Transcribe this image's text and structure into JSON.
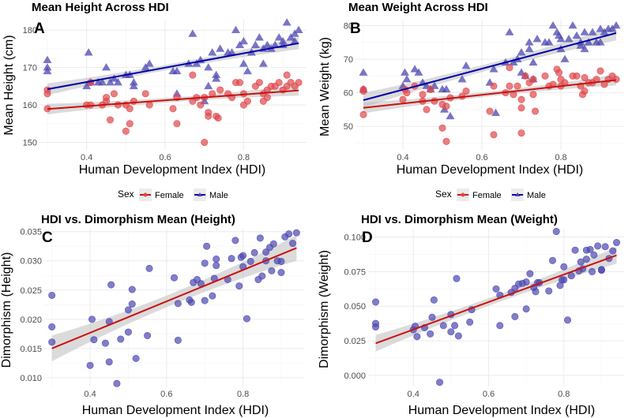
{
  "chart_data": [
    {
      "type": "scatter",
      "panel": "A",
      "title": "Mean Height Across HDI",
      "xlabel": "Human Development Index (HDI)",
      "ylabel": "Mean Height (cm)",
      "xlim": [
        0.28,
        0.96
      ],
      "ylim": [
        148,
        183
      ],
      "xticks": [
        0.4,
        0.6,
        0.8
      ],
      "xtick_labels": [
        "0.4",
        "0.6",
        "0.8"
      ],
      "yticks": [
        150,
        160,
        170,
        180
      ],
      "ytick_labels": [
        "150",
        "160",
        "170",
        "180"
      ],
      "grid": true,
      "legend": {
        "title": "Sex",
        "position": "bottom",
        "entries": [
          "Female",
          "Male"
        ]
      },
      "series": [
        {
          "name": "Male",
          "marker": "triangle",
          "color": "#4b47b0",
          "line_color": "#0000aa",
          "fit": {
            "x": [
              0.3,
              0.94
            ],
            "y": [
              164.2,
              176.5
            ],
            "ci": 1.6
          },
          "x": [
            0.3,
            0.3,
            0.3,
            0.4,
            0.405,
            0.41,
            0.43,
            0.44,
            0.45,
            0.46,
            0.47,
            0.48,
            0.5,
            0.51,
            0.52,
            0.52,
            0.55,
            0.56,
            0.62,
            0.63,
            0.63,
            0.66,
            0.67,
            0.68,
            0.69,
            0.7,
            0.71,
            0.71,
            0.72,
            0.73,
            0.73,
            0.74,
            0.76,
            0.77,
            0.78,
            0.79,
            0.8,
            0.8,
            0.81,
            0.82,
            0.83,
            0.84,
            0.85,
            0.85,
            0.86,
            0.87,
            0.88,
            0.89,
            0.9,
            0.9,
            0.91,
            0.92,
            0.93,
            0.93,
            0.94
          ],
          "y": [
            172,
            170,
            169,
            165,
            174,
            166,
            166,
            166,
            170,
            166,
            167,
            166,
            168,
            168,
            165,
            166,
            170,
            171,
            169,
            169,
            163,
            171,
            179,
            171,
            172,
            161,
            170,
            165,
            174,
            167,
            168,
            175,
            174,
            174,
            180,
            176,
            177,
            171,
            169,
            174,
            176,
            178,
            171,
            175,
            176,
            175,
            176,
            178,
            177,
            176,
            182,
            178,
            177,
            179,
            180
          ]
        },
        {
          "name": "Female",
          "marker": "circle",
          "color": "#e0474c",
          "line_color": "#cc1010",
          "fit": {
            "x": [
              0.3,
              0.94
            ],
            "y": [
              158.9,
              163.9
            ],
            "ci": 1.4
          },
          "x": [
            0.3,
            0.3,
            0.3,
            0.41,
            0.4,
            0.41,
            0.44,
            0.45,
            0.45,
            0.46,
            0.47,
            0.48,
            0.5,
            0.5,
            0.51,
            0.51,
            0.52,
            0.55,
            0.56,
            0.62,
            0.63,
            0.63,
            0.67,
            0.67,
            0.68,
            0.69,
            0.7,
            0.7,
            0.71,
            0.71,
            0.72,
            0.73,
            0.735,
            0.74,
            0.76,
            0.77,
            0.78,
            0.79,
            0.8,
            0.8,
            0.81,
            0.83,
            0.84,
            0.85,
            0.85,
            0.86,
            0.86,
            0.87,
            0.88,
            0.89,
            0.9,
            0.91,
            0.91,
            0.92,
            0.93,
            0.94
          ],
          "y": [
            164,
            163,
            159,
            166,
            160,
            160,
            160,
            161,
            162,
            156,
            163,
            160,
            160,
            153,
            159,
            155,
            161,
            163,
            160,
            159,
            155,
            162,
            168,
            161,
            162,
            160,
            162,
            150,
            157,
            158,
            163,
            157,
            156.5,
            164,
            163,
            162,
            166,
            166,
            163,
            160,
            161,
            165,
            166,
            161,
            163,
            162,
            164,
            165,
            165,
            166,
            164,
            168,
            165,
            166,
            165,
            166
          ]
        }
      ]
    },
    {
      "type": "scatter",
      "panel": "B",
      "title": "Mean Weight Across HDI",
      "xlabel": "Human Development Index (HDI)",
      "ylabel": "Mean Weight (kg)",
      "xlim": [
        0.28,
        0.96
      ],
      "ylim": [
        43,
        82
      ],
      "xticks": [
        0.4,
        0.6,
        0.8
      ],
      "xtick_labels": [
        "0.4",
        "0.6",
        "0.8"
      ],
      "yticks": [
        50,
        60,
        70,
        80
      ],
      "ytick_labels": [
        "50",
        "60",
        "70",
        "80"
      ],
      "grid": true,
      "legend": {
        "title": "Sex",
        "position": "bottom",
        "entries": [
          "Female",
          "Male"
        ]
      },
      "series": [
        {
          "name": "Male",
          "marker": "triangle",
          "color": "#4b47b0",
          "line_color": "#0000aa",
          "fit": {
            "x": [
              0.3,
              0.94
            ],
            "y": [
              57.8,
              77.8
            ],
            "ci": 2.2
          },
          "x": [
            0.3,
            0.3,
            0.4,
            0.405,
            0.41,
            0.43,
            0.44,
            0.45,
            0.46,
            0.47,
            0.48,
            0.5,
            0.505,
            0.51,
            0.52,
            0.55,
            0.56,
            0.62,
            0.63,
            0.635,
            0.66,
            0.67,
            0.68,
            0.69,
            0.7,
            0.7,
            0.71,
            0.72,
            0.72,
            0.73,
            0.73,
            0.74,
            0.76,
            0.77,
            0.78,
            0.79,
            0.795,
            0.8,
            0.8,
            0.81,
            0.82,
            0.83,
            0.84,
            0.85,
            0.85,
            0.86,
            0.86,
            0.87,
            0.88,
            0.89,
            0.9,
            0.9,
            0.91,
            0.92,
            0.93,
            0.94
          ],
          "y": [
            66,
            61,
            62,
            66,
            64,
            67,
            66,
            63,
            62,
            61,
            62,
            61,
            55,
            61,
            53,
            64,
            68,
            63,
            67,
            54,
            69,
            78,
            69,
            70,
            72,
            66,
            65,
            73,
            75,
            69,
            64,
            76,
            75,
            75,
            80,
            78,
            77,
            76,
            73,
            70,
            76,
            80,
            77,
            75,
            74,
            78,
            73,
            75,
            78,
            75,
            79,
            75,
            78,
            79,
            79,
            80
          ]
        },
        {
          "name": "Female",
          "marker": "circle",
          "color": "#e0474c",
          "line_color": "#cc1010",
          "fit": {
            "x": [
              0.3,
              0.94
            ],
            "y": [
              55.5,
              63.8
            ],
            "ci": 1.6
          },
          "x": [
            0.3,
            0.3,
            0.3,
            0.4,
            0.405,
            0.41,
            0.43,
            0.45,
            0.45,
            0.46,
            0.47,
            0.48,
            0.5,
            0.5,
            0.51,
            0.51,
            0.52,
            0.55,
            0.56,
            0.62,
            0.63,
            0.63,
            0.66,
            0.67,
            0.67,
            0.68,
            0.69,
            0.7,
            0.7,
            0.7,
            0.71,
            0.72,
            0.73,
            0.73,
            0.735,
            0.76,
            0.77,
            0.78,
            0.79,
            0.795,
            0.8,
            0.8,
            0.81,
            0.83,
            0.84,
            0.85,
            0.855,
            0.86,
            0.86,
            0.87,
            0.88,
            0.89,
            0.9,
            0.91,
            0.92,
            0.93,
            0.94
          ],
          "y": [
            61,
            60.5,
            53.5,
            58,
            61,
            60,
            62,
            59.5,
            57.5,
            55,
            61,
            57.5,
            56.5,
            49.5,
            56,
            45.5,
            58.5,
            59,
            60.5,
            54.5,
            47.5,
            62,
            60,
            62,
            67.5,
            59.5,
            62,
            58,
            55.5,
            48,
            65,
            63,
            64,
            59.5,
            54.5,
            65,
            62,
            62.5,
            67,
            66,
            64,
            62,
            63,
            65,
            65,
            62,
            59.5,
            60.5,
            64.5,
            63,
            63,
            64,
            66.5,
            62.5,
            64,
            65,
            64
          ]
        }
      ]
    },
    {
      "type": "scatter",
      "panel": "C",
      "title": "HDI vs. Dimorphism Mean (Height)",
      "xlabel": "Human Development Index (HDI)",
      "ylabel": "Dimorphism (Height)",
      "xlim": [
        0.28,
        0.96
      ],
      "ylim": [
        0.0085,
        0.0355
      ],
      "xticks": [
        0.4,
        0.6,
        0.8
      ],
      "xtick_labels": [
        "0.4",
        "0.6",
        "0.8"
      ],
      "yticks": [
        0.01,
        0.015,
        0.02,
        0.025,
        0.03,
        0.035
      ],
      "ytick_labels": [
        "0.010",
        "0.015",
        "0.020",
        "0.025",
        "0.030",
        "0.035"
      ],
      "grid": true,
      "series": [
        {
          "name": "Dimorphism",
          "marker": "circle",
          "color": "#4b47b0",
          "line_color": "#cc1010",
          "fit": {
            "x": [
              0.3,
              0.94
            ],
            "y": [
              0.015,
              0.0322
            ],
            "ci": 0.0022
          },
          "x": [
            0.3,
            0.3,
            0.3,
            0.4,
            0.405,
            0.41,
            0.44,
            0.45,
            0.45,
            0.455,
            0.47,
            0.48,
            0.5,
            0.5,
            0.51,
            0.51,
            0.52,
            0.55,
            0.555,
            0.62,
            0.63,
            0.63,
            0.66,
            0.665,
            0.67,
            0.68,
            0.69,
            0.7,
            0.7,
            0.705,
            0.72,
            0.725,
            0.73,
            0.73,
            0.76,
            0.77,
            0.78,
            0.79,
            0.795,
            0.8,
            0.8,
            0.81,
            0.82,
            0.83,
            0.84,
            0.845,
            0.85,
            0.86,
            0.86,
            0.87,
            0.875,
            0.88,
            0.89,
            0.9,
            0.9,
            0.91,
            0.92,
            0.93,
            0.94
          ],
          "y": [
            0.0241,
            0.0187,
            0.0161,
            0.0121,
            0.02,
            0.0165,
            0.0159,
            0.0127,
            0.0196,
            0.0259,
            0.009,
            0.0166,
            0.0178,
            0.0216,
            0.0226,
            0.0251,
            0.0133,
            0.0172,
            0.0287,
            0.0271,
            0.0227,
            0.0164,
            0.0233,
            0.0229,
            0.0263,
            0.0268,
            0.0261,
            0.0296,
            0.0232,
            0.0325,
            0.024,
            0.027,
            0.0303,
            0.0292,
            0.0268,
            0.0304,
            0.0335,
            0.0257,
            0.0306,
            0.0309,
            0.029,
            0.0201,
            0.0299,
            0.0314,
            0.0268,
            0.0339,
            0.0274,
            0.0315,
            0.03,
            0.0323,
            0.0283,
            0.0329,
            0.03,
            0.028,
            0.0299,
            0.0341,
            0.0346,
            0.033,
            0.0348
          ]
        }
      ]
    },
    {
      "type": "scatter",
      "panel": "D",
      "title": "HDI vs. Dimorphism Mean (Weight)",
      "xlabel": "Human Development Index (HDI)",
      "ylabel": "Dimorphism (Weight)",
      "xlim": [
        0.28,
        0.96
      ],
      "ylim": [
        -0.008,
        0.106
      ],
      "xticks": [
        0.4,
        0.6,
        0.8
      ],
      "xtick_labels": [
        "0.4",
        "0.6",
        "0.8"
      ],
      "yticks": [
        0.0,
        0.025,
        0.05,
        0.075,
        0.1
      ],
      "ytick_labels": [
        "0.000",
        "0.025",
        "0.050",
        "0.075",
        "0.100"
      ],
      "grid": true,
      "series": [
        {
          "name": "Dimorphism",
          "marker": "circle",
          "color": "#4b47b0",
          "line_color": "#cc1010",
          "fit": {
            "x": [
              0.3,
              0.94
            ],
            "y": [
              0.0232,
              0.0868
            ],
            "ci": 0.006
          },
          "x": [
            0.3,
            0.3,
            0.3,
            0.4,
            0.405,
            0.41,
            0.43,
            0.445,
            0.45,
            0.455,
            0.47,
            0.48,
            0.5,
            0.5,
            0.51,
            0.515,
            0.52,
            0.55,
            0.555,
            0.62,
            0.63,
            0.63,
            0.66,
            0.67,
            0.67,
            0.68,
            0.69,
            0.7,
            0.7,
            0.71,
            0.72,
            0.725,
            0.73,
            0.735,
            0.76,
            0.77,
            0.78,
            0.79,
            0.795,
            0.8,
            0.8,
            0.81,
            0.82,
            0.83,
            0.84,
            0.845,
            0.85,
            0.86,
            0.86,
            0.87,
            0.875,
            0.88,
            0.89,
            0.9,
            0.9,
            0.91,
            0.92,
            0.93,
            0.94
          ],
          "y": [
            0.053,
            0.0375,
            0.035,
            0.033,
            0.0355,
            0.028,
            0.0345,
            0.03,
            0.042,
            0.0545,
            -0.005,
            0.036,
            0.044,
            0.0315,
            0.036,
            0.07,
            0.0285,
            0.0385,
            0.0475,
            0.0625,
            0.058,
            0.036,
            0.06,
            0.063,
            0.0425,
            0.066,
            0.0665,
            0.0675,
            0.048,
            0.0735,
            0.0635,
            0.0605,
            0.067,
            0.067,
            0.061,
            0.083,
            0.104,
            0.065,
            0.069,
            0.0785,
            0.069,
            0.04,
            0.072,
            0.0905,
            0.0755,
            0.082,
            0.077,
            0.0905,
            0.084,
            0.091,
            0.075,
            0.087,
            0.0935,
            0.076,
            0.0765,
            0.093,
            0.0845,
            0.09,
            0.096
          ]
        }
      ]
    }
  ],
  "panels": [
    {
      "label": "A",
      "title": "Mean Height Across HDI",
      "xlabel": "Human Development Index (HDI)",
      "ylabel": "Mean Height (cm)"
    },
    {
      "label": "B",
      "title": "Mean Weight Across HDI",
      "xlabel": "Human Development Index (HDI)",
      "ylabel": "Mean Weight (kg)"
    },
    {
      "label": "C",
      "title": "HDI vs. Dimorphism Mean (Height)",
      "xlabel": "Human Development Index (HDI)",
      "ylabel": "Dimorphism (Height)"
    },
    {
      "label": "D",
      "title": "HDI vs. Dimorphism Mean (Weight)",
      "xlabel": "Human Development Index (HDI)",
      "ylabel": "Dimorphism (Weight)"
    }
  ],
  "legend": {
    "title": "Sex",
    "female": "Female",
    "male": "Male",
    "female_color": "#cc1010",
    "male_color": "#0000aa"
  },
  "colors": {
    "male_point": "#4b47b0",
    "female_point": "#e0474c",
    "male_line": "#0000aa",
    "female_line": "#cc1010",
    "ci_band": "#bdbdbd"
  }
}
